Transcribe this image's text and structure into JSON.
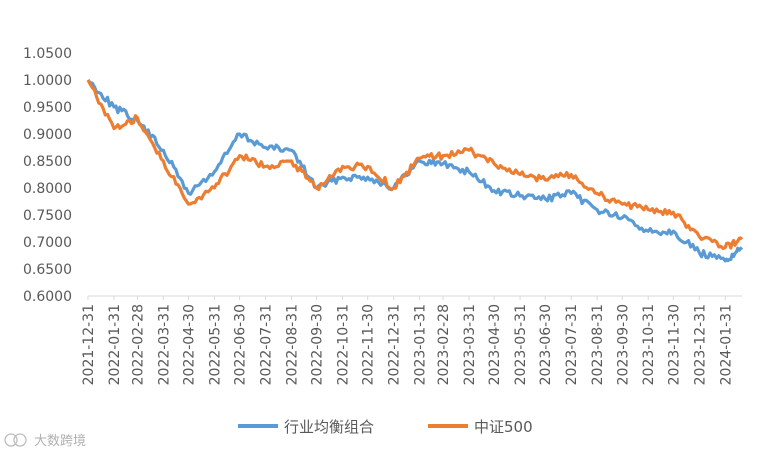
{
  "chart_data": {
    "type": "line",
    "title": "",
    "xlabel": "",
    "ylabel": "",
    "ylim": [
      0.6,
      1.05
    ],
    "yticks": [
      "0.6000",
      "0.6500",
      "0.7000",
      "0.7500",
      "0.8000",
      "0.8500",
      "0.9000",
      "0.9500",
      "1.0000",
      "1.0500"
    ],
    "x": [
      "2021-12-31",
      "2022-01-31",
      "2022-02-28",
      "2022-03-31",
      "2022-04-30",
      "2022-05-31",
      "2022-06-30",
      "2022-07-31",
      "2022-08-31",
      "2022-09-30",
      "2022-10-31",
      "2022-11-30",
      "2022-12-31",
      "2023-01-31",
      "2023-02-28",
      "2023-03-31",
      "2023-04-30",
      "2023-05-31",
      "2023-06-30",
      "2023-07-31",
      "2023-08-31",
      "2023-09-30",
      "2023-10-31",
      "2023-11-30",
      "2023-12-31",
      "2024-01-31",
      "2024-02-20"
    ],
    "xtick_labels": [
      "2021-12-31",
      "2022-01-31",
      "2022-02-28",
      "2022-03-31",
      "2022-04-30",
      "2022-05-31",
      "2022-06-30",
      "2022-07-31",
      "2022-08-31",
      "2022-09-30",
      "2022-10-31",
      "2022-11-30",
      "2022-12-31",
      "2023-01-31",
      "2023-02-28",
      "2023-03-31",
      "2023-04-30",
      "2023-05-31",
      "2023-06-30",
      "2023-07-31",
      "2023-08-31",
      "2023-09-30",
      "2023-10-31",
      "2023-11-30",
      "2023-12-31",
      "2024-01-31"
    ],
    "grid": false,
    "legend_position": "bottom",
    "series": [
      {
        "name": "行业均衡组合",
        "color": "#5B9BD5",
        "values": [
          1.0,
          0.95,
          0.925,
          0.87,
          0.79,
          0.83,
          0.9,
          0.875,
          0.87,
          0.8,
          0.82,
          0.82,
          0.8,
          0.85,
          0.845,
          0.83,
          0.795,
          0.785,
          0.78,
          0.79,
          0.76,
          0.745,
          0.72,
          0.72,
          0.68,
          0.665,
          0.69
        ]
      },
      {
        "name": "中证500",
        "color": "#ED7D31",
        "values": [
          1.0,
          0.91,
          0.93,
          0.85,
          0.77,
          0.8,
          0.86,
          0.84,
          0.85,
          0.8,
          0.84,
          0.84,
          0.8,
          0.855,
          0.86,
          0.87,
          0.845,
          0.825,
          0.815,
          0.825,
          0.79,
          0.77,
          0.76,
          0.755,
          0.71,
          0.69,
          0.705
        ]
      }
    ]
  },
  "watermark": {
    "text": "大数跨境"
  }
}
